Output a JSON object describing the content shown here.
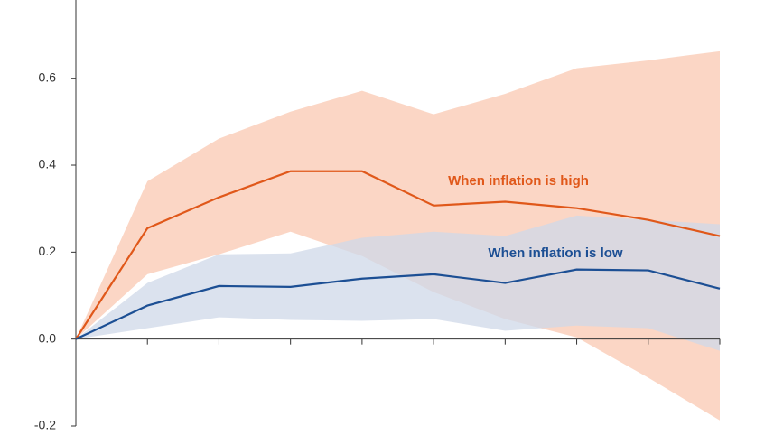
{
  "chart_data": {
    "type": "line",
    "categories": [
      null,
      null,
      null,
      null,
      null,
      null,
      null,
      null,
      null,
      null
    ],
    "series": [
      {
        "name": "When inflation is high",
        "color": "#e0581a",
        "band_color": "#fbd2bf",
        "values": [
          0,
          0.255,
          0.326,
          0.386,
          0.386,
          0.307,
          0.316,
          0.301,
          0.274,
          0.237
        ],
        "upper": [
          0,
          0.363,
          0.461,
          0.523,
          0.571,
          0.517,
          0.564,
          0.623,
          0.641,
          0.662
        ],
        "lower": [
          0,
          0.149,
          0.195,
          0.247,
          0.191,
          0.108,
          0.046,
          0.004,
          -0.089,
          -0.187
        ]
      },
      {
        "name": "When inflation is low",
        "color": "#1c4f94",
        "band_color": "#cfd8e8",
        "values": [
          0,
          0.077,
          0.122,
          0.12,
          0.139,
          0.149,
          0.129,
          0.16,
          0.158,
          0.116
        ],
        "upper": [
          0,
          0.129,
          0.195,
          0.197,
          0.233,
          0.247,
          0.237,
          0.284,
          0.274,
          0.264
        ],
        "lower": [
          0,
          0.025,
          0.05,
          0.044,
          0.042,
          0.046,
          0.019,
          0.031,
          0.025,
          -0.027
        ]
      }
    ],
    "ylim": [
      -0.2,
      0.78
    ],
    "yticks": [
      -0.2,
      0.2,
      0.4,
      0.6,
      {
        "value": 0,
        "label": "0.0"
      }
    ],
    "grid": false
  }
}
